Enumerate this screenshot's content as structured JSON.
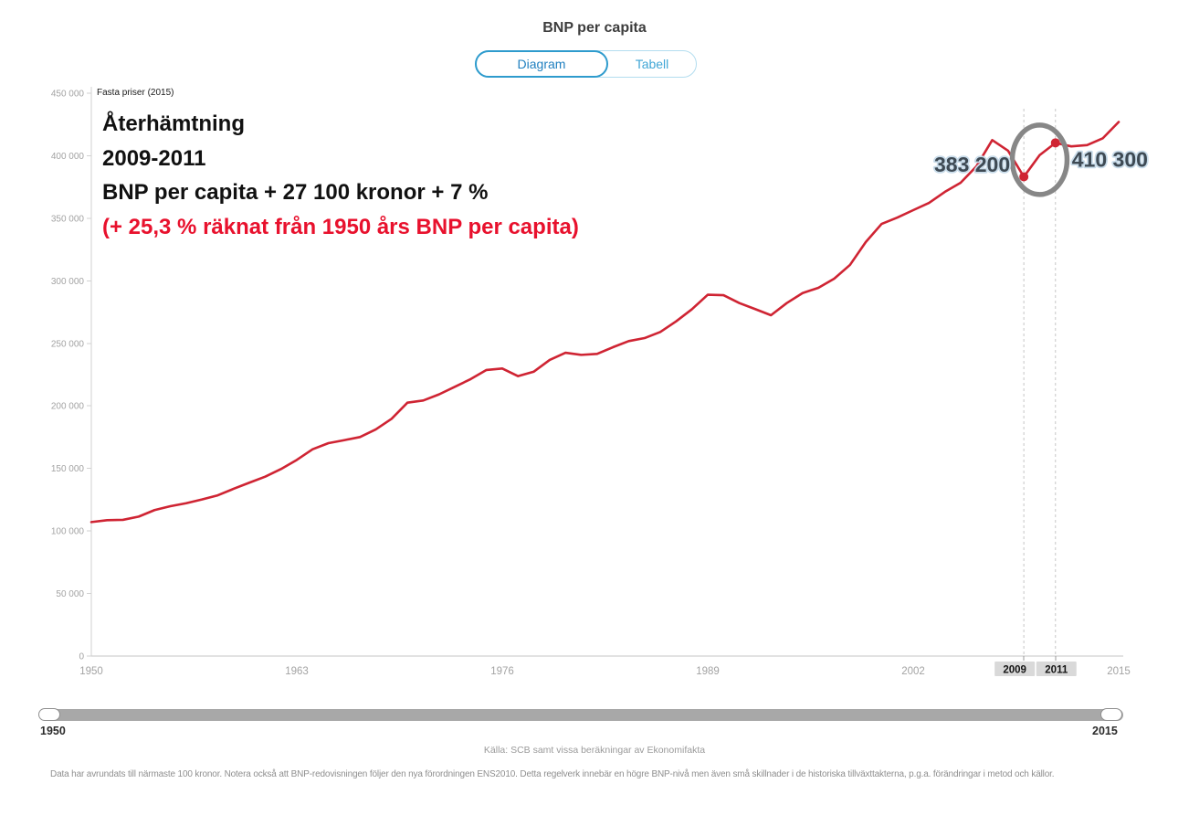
{
  "header": {
    "title": "BNP per capita",
    "tabs": [
      {
        "label": "Diagram",
        "selected": true
      },
      {
        "label": "Tabell",
        "selected": false
      }
    ]
  },
  "annotation": {
    "line1": "Återhämtning",
    "line2": "2009-2011",
    "line3": "BNP per capita + 27 100 kronor + 7 %",
    "line4": "(+ 25,3 % räknat från 1950 års BNP per capita)"
  },
  "chart_data": {
    "type": "line",
    "unit_label": "Fasta priser (2015)",
    "x_years": {
      "start": 1950,
      "end": 2015,
      "step": 1
    },
    "series": [
      {
        "name": "BNP per capita",
        "color": "#cf2433",
        "values": [
          107100,
          108600,
          108900,
          111500,
          116700,
          119800,
          122200,
          125200,
          128500,
          133700,
          138600,
          143400,
          149500,
          156800,
          165300,
          170200,
          172600,
          175100,
          181200,
          189700,
          202600,
          204300,
          209200,
          215300,
          221400,
          228700,
          229900,
          223800,
          227400,
          236700,
          242500,
          240800,
          241600,
          246900,
          251800,
          254200,
          259100,
          267600,
          277300,
          288900,
          288500,
          282200,
          277400,
          272500,
          282200,
          290200,
          294400,
          301700,
          312700,
          331000,
          345500,
          350600,
          356500,
          362300,
          371100,
          378400,
          391500,
          412500,
          404000,
          383200,
          400500,
          410300,
          407500,
          408500,
          414000,
          427000
        ]
      }
    ],
    "y_axis": {
      "min": 0,
      "max": 450000,
      "tick_step": 50000,
      "tick_labels": [
        "0",
        "50 000",
        "100 000",
        "150 000",
        "200 000",
        "250 000",
        "300 000",
        "350 000",
        "400 000",
        "450 000"
      ]
    },
    "x_axis": {
      "tick_years": [
        1950,
        1963,
        1976,
        1989,
        2002,
        2015
      ]
    },
    "markers": [
      {
        "year": 2009,
        "value": 383200,
        "label": "383 200"
      },
      {
        "year": 2011,
        "value": 410300,
        "label": "410 300"
      }
    ],
    "highlight_circle_years": [
      2009,
      2011
    ],
    "grid": false,
    "legend": "none"
  },
  "slider": {
    "min_label": "1950",
    "max_label": "2015"
  },
  "source": "Källa: SCB samt vissa beräkningar av Ekonomifakta",
  "footnote": "Data har avrundats till närmaste 100 kronor. Notera också att BNP-redovisningen följer den nya förordningen ENS2010. Detta regelverk innebär en högre BNP-nivå men även små skillnader i de historiska tillväxttakterna, p.g.a. förändringar i metod och källor.",
  "colors": {
    "line_red": "#cf2433",
    "annotation_red": "#e8112d",
    "circle_gray": "#878787",
    "value_label": "#3e4a54",
    "axis_gray": "#c6c6c6",
    "tick_text": "#a3a3a3",
    "highlight_box_bg": "#d9d9d9",
    "tab_blue": "#2080c0",
    "tab_light_blue": "#3fa6d6"
  }
}
